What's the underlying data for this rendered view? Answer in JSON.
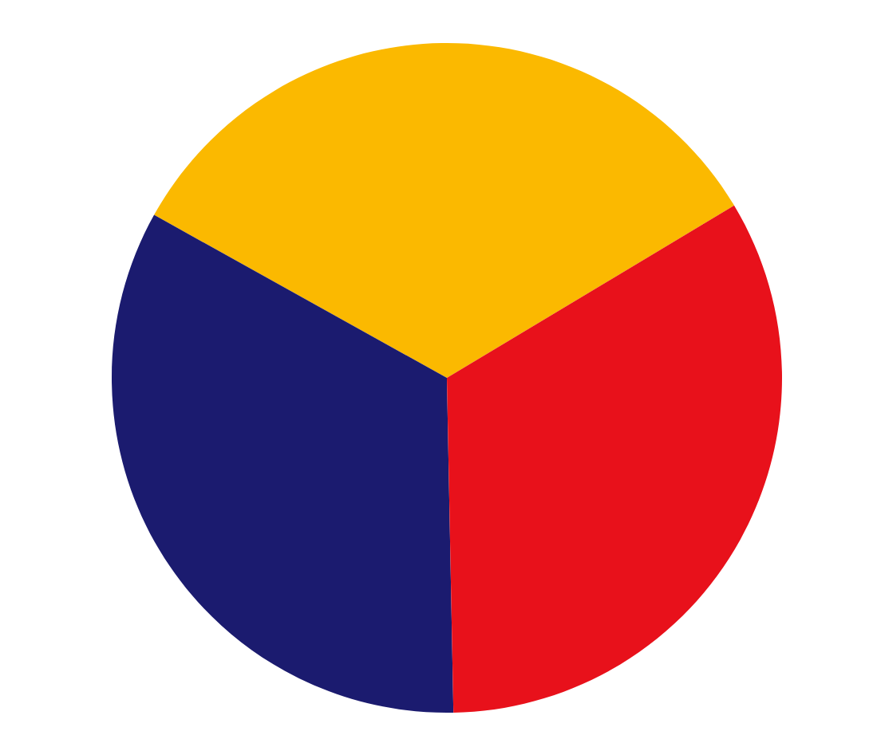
{
  "chart_data": {
    "type": "pie",
    "categories": [
      null,
      null,
      null
    ],
    "values": [
      33.3,
      33.4,
      33.3
    ],
    "colors": [
      "#fbb900",
      "#1b1b6f",
      "#e8111b"
    ]
  }
}
